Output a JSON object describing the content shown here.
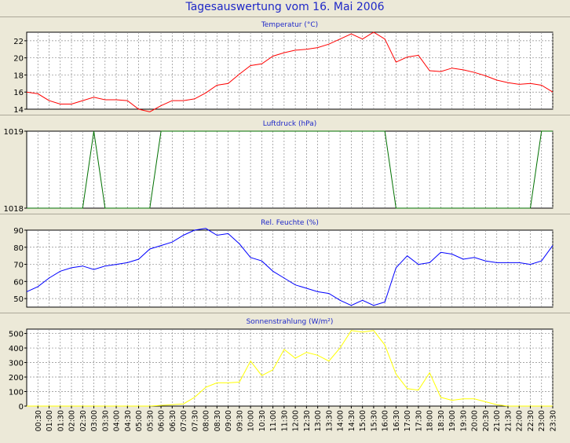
{
  "title": "Tagesauswertung vom 16. Mai 2006",
  "colors": {
    "background": "#ece9d8",
    "plot_background": "#ffffff",
    "grid": "#8a8a8a",
    "title_text": "#1f28c8",
    "panel_title_text": "#1f28c8"
  },
  "time_labels": [
    "00:30",
    "01:00",
    "01:30",
    "02:00",
    "02:30",
    "03:00",
    "03:30",
    "04:00",
    "04:30",
    "05:00",
    "05:30",
    "06:00",
    "06:30",
    "07:00",
    "07:30",
    "08:00",
    "08:30",
    "09:00",
    "09:30",
    "10:00",
    "10:30",
    "11:00",
    "11:30",
    "12:00",
    "12:30",
    "13:00",
    "13:30",
    "14:00",
    "14:30",
    "15:00",
    "15:30",
    "16:00",
    "16:30",
    "17:00",
    "17:30",
    "18:00",
    "18:30",
    "19:00",
    "19:30",
    "20:00",
    "20:30",
    "21:00",
    "21:30",
    "22:00",
    "22:30",
    "23:00",
    "23:30"
  ],
  "chart_data": [
    {
      "type": "line",
      "title": "Temperatur (°C)",
      "ylim": [
        14,
        23
      ],
      "yticks": [
        14,
        16,
        18,
        20,
        22
      ],
      "grid": true,
      "series": [
        {
          "color": "#ff0000",
          "values": [
            16.0,
            15.8,
            15.0,
            14.6,
            14.6,
            15.0,
            15.4,
            15.1,
            15.1,
            15.0,
            14.0,
            13.7,
            14.4,
            15.0,
            15.0,
            15.2,
            15.9,
            16.8,
            17.0,
            18.1,
            19.1,
            19.3,
            20.2,
            20.6,
            20.9,
            21.0,
            21.2,
            21.6,
            22.2,
            22.8,
            22.2,
            23.0,
            22.2,
            19.5,
            20.1,
            20.3,
            18.5,
            18.4,
            18.8,
            18.6,
            18.3,
            17.9,
            17.4,
            17.1,
            16.9,
            17.0,
            16.8,
            16.0
          ]
        }
      ]
    },
    {
      "type": "line",
      "title": "Luftdruck (hPa)",
      "ylim": [
        1018,
        1019
      ],
      "yticks": [
        1018,
        1019
      ],
      "grid": true,
      "series": [
        {
          "color": "#007000",
          "values": [
            1018,
            1018,
            1018,
            1018,
            1018,
            1018,
            1019,
            1018,
            1018,
            1018,
            1018,
            1018,
            1019,
            1019,
            1019,
            1019,
            1019,
            1019,
            1019,
            1019,
            1019,
            1019,
            1019,
            1019,
            1019,
            1019,
            1019,
            1019,
            1019,
            1019,
            1019,
            1019,
            1019,
            1018,
            1018,
            1018,
            1018,
            1018,
            1018,
            1018,
            1018,
            1018,
            1018,
            1018,
            1018,
            1018,
            1019,
            1019
          ]
        }
      ]
    },
    {
      "type": "line",
      "title": "Rel. Feuchte (%)",
      "ylim": [
        45,
        90
      ],
      "yticks": [
        50,
        60,
        70,
        80,
        90
      ],
      "grid": true,
      "series": [
        {
          "color": "#0000ff",
          "values": [
            54,
            57,
            62,
            66,
            68,
            69,
            67,
            69,
            70,
            71,
            73,
            79,
            81,
            83,
            87,
            90,
            91,
            87,
            88,
            82,
            74,
            72,
            66,
            62,
            58,
            56,
            54,
            53,
            49,
            46,
            49,
            46,
            48,
            68,
            75,
            70,
            71,
            77,
            76,
            73,
            74,
            72,
            71,
            71,
            71,
            70,
            72,
            81
          ]
        }
      ]
    },
    {
      "type": "line",
      "title": "Sonnenstrahlung (W/m²)",
      "ylim": [
        0,
        530
      ],
      "yticks": [
        0,
        100,
        200,
        300,
        400,
        500
      ],
      "grid": true,
      "series": [
        {
          "color": "#ffff00",
          "values": [
            0,
            0,
            0,
            0,
            0,
            0,
            0,
            0,
            0,
            0,
            0,
            0,
            5,
            10,
            15,
            60,
            130,
            160,
            160,
            165,
            310,
            210,
            250,
            390,
            330,
            370,
            350,
            310,
            400,
            520,
            510,
            520,
            420,
            220,
            120,
            110,
            230,
            60,
            40,
            50,
            50,
            30,
            10,
            0,
            0,
            0,
            0,
            0
          ]
        }
      ]
    }
  ]
}
